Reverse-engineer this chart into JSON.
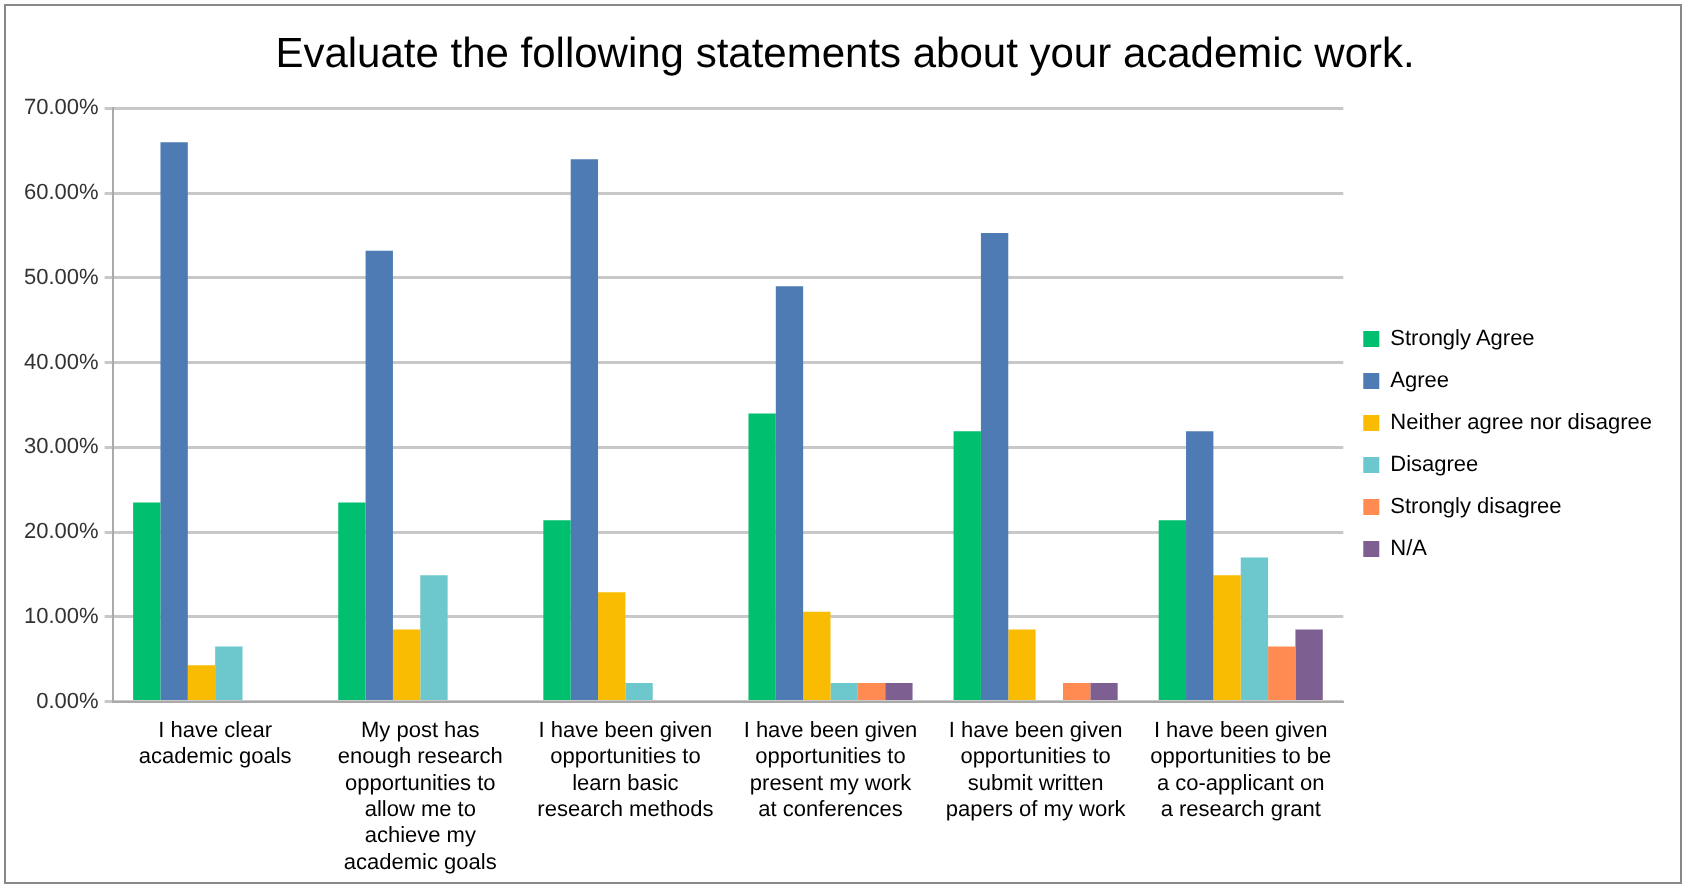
{
  "chart_data": {
    "type": "bar",
    "title": "Evaluate the following statements about your academic work.",
    "categories": [
      "I have clear academic goals",
      "My post has enough research opportunities to allow me to achieve my academic goals",
      "I have been given opportunities to learn basic research methods",
      "I have been given opportunities to present my work at conferences",
      "I have been given opportunities to submit written papers of my work",
      "I have been given opportunities to be a co-applicant on a research grant"
    ],
    "series": [
      {
        "name": "Strongly Agree",
        "color": "#00bf6f",
        "values": [
          23.5,
          23.5,
          21.4,
          34.0,
          31.9,
          21.4
        ]
      },
      {
        "name": "Agree",
        "color": "#4f7bb5",
        "values": [
          66.0,
          53.2,
          64.0,
          49.0,
          55.3,
          31.9
        ]
      },
      {
        "name": "Neither agree nor disagree",
        "color": "#f9bc02",
        "values": [
          4.3,
          8.5,
          12.9,
          10.6,
          8.5,
          14.9
        ]
      },
      {
        "name": "Disagree",
        "color": "#6cc8cc",
        "values": [
          6.5,
          14.9,
          2.2,
          2.2,
          0,
          17.0
        ]
      },
      {
        "name": "Strongly disagree",
        "color": "#ff8b52",
        "values": [
          0,
          0,
          0,
          2.2,
          2.2,
          6.5
        ]
      },
      {
        "name": "N/A",
        "color": "#7e5f92",
        "values": [
          0,
          0,
          0,
          2.2,
          2.2,
          8.5
        ]
      }
    ],
    "ylim": [
      0,
      70
    ],
    "yticks": [
      {
        "value": 0,
        "label": "0.00%"
      },
      {
        "value": 10,
        "label": "10.00%"
      },
      {
        "value": 20,
        "label": "20.00%"
      },
      {
        "value": 30,
        "label": "30.00%"
      },
      {
        "value": 40,
        "label": "40.00%"
      },
      {
        "value": 50,
        "label": "50.00%"
      },
      {
        "value": 60,
        "label": "60.00%"
      },
      {
        "value": 70,
        "label": "70.00%"
      }
    ],
    "grid": "y",
    "legend": "right"
  }
}
